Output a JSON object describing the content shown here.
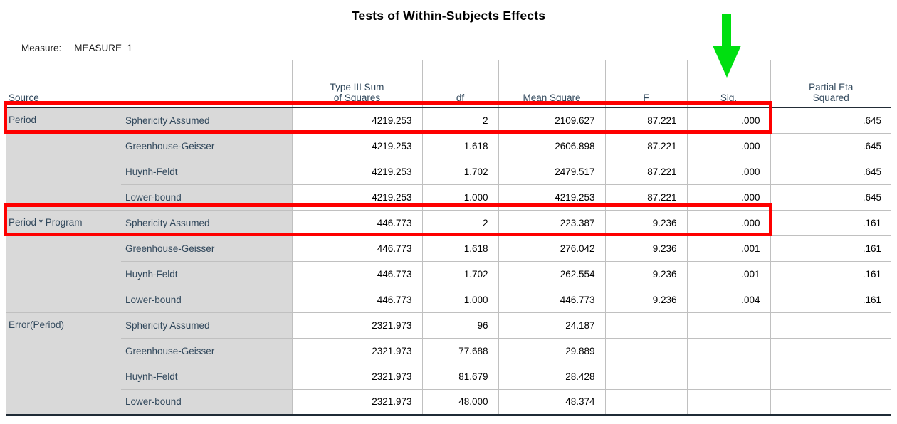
{
  "title": "Tests of Within-Subjects Effects",
  "measure": {
    "label": "Measure:",
    "value": "MEASURE_1"
  },
  "table": {
    "headers": {
      "source": "Source",
      "ss": "Type III Sum\nof Squares",
      "df": "df",
      "ms": "Mean Square",
      "f": "F",
      "sig": "Sig.",
      "eta": "Partial Eta\nSquared"
    },
    "blocks": [
      {
        "source": "Period",
        "rows": [
          [
            "Sphericity Assumed",
            "4219.253",
            "2",
            "2109.627",
            "87.221",
            ".000",
            ".645"
          ],
          [
            "Greenhouse-Geisser",
            "4219.253",
            "1.618",
            "2606.898",
            "87.221",
            ".000",
            ".645"
          ],
          [
            "Huynh-Feldt",
            "4219.253",
            "1.702",
            "2479.517",
            "87.221",
            ".000",
            ".645"
          ],
          [
            "Lower-bound",
            "4219.253",
            "1.000",
            "4219.253",
            "87.221",
            ".000",
            ".645"
          ]
        ]
      },
      {
        "source": "Period * Program",
        "rows": [
          [
            "Sphericity Assumed",
            "446.773",
            "2",
            "223.387",
            "9.236",
            ".000",
            ".161"
          ],
          [
            "Greenhouse-Geisser",
            "446.773",
            "1.618",
            "276.042",
            "9.236",
            ".001",
            ".161"
          ],
          [
            "Huynh-Feldt",
            "446.773",
            "1.702",
            "262.554",
            "9.236",
            ".001",
            ".161"
          ],
          [
            "Lower-bound",
            "446.773",
            "1.000",
            "446.773",
            "9.236",
            ".004",
            ".161"
          ]
        ]
      },
      {
        "source": "Error(Period)",
        "rows": [
          [
            "Sphericity Assumed",
            "2321.973",
            "96",
            "24.187",
            "",
            "",
            ""
          ],
          [
            "Greenhouse-Geisser",
            "2321.973",
            "77.688",
            "29.889",
            "",
            "",
            ""
          ],
          [
            "Huynh-Feldt",
            "2321.973",
            "81.679",
            "28.428",
            "",
            "",
            ""
          ],
          [
            "Lower-bound",
            "2321.973",
            "48.000",
            "48.374",
            "",
            "",
            ""
          ]
        ]
      }
    ]
  },
  "annotations": {
    "highlight_color": "#fe0000",
    "highlighted_rows": [
      "Period — Sphericity Assumed",
      "Period * Program — Sphericity Assumed"
    ],
    "arrow_color": "#00df10",
    "arrow_target_column": "Sig."
  },
  "colors": {
    "label_background": "#d9d9d9",
    "header_text": "#31485c",
    "grid_line": "#c0c0c0",
    "heavy_line": "#222c36"
  }
}
